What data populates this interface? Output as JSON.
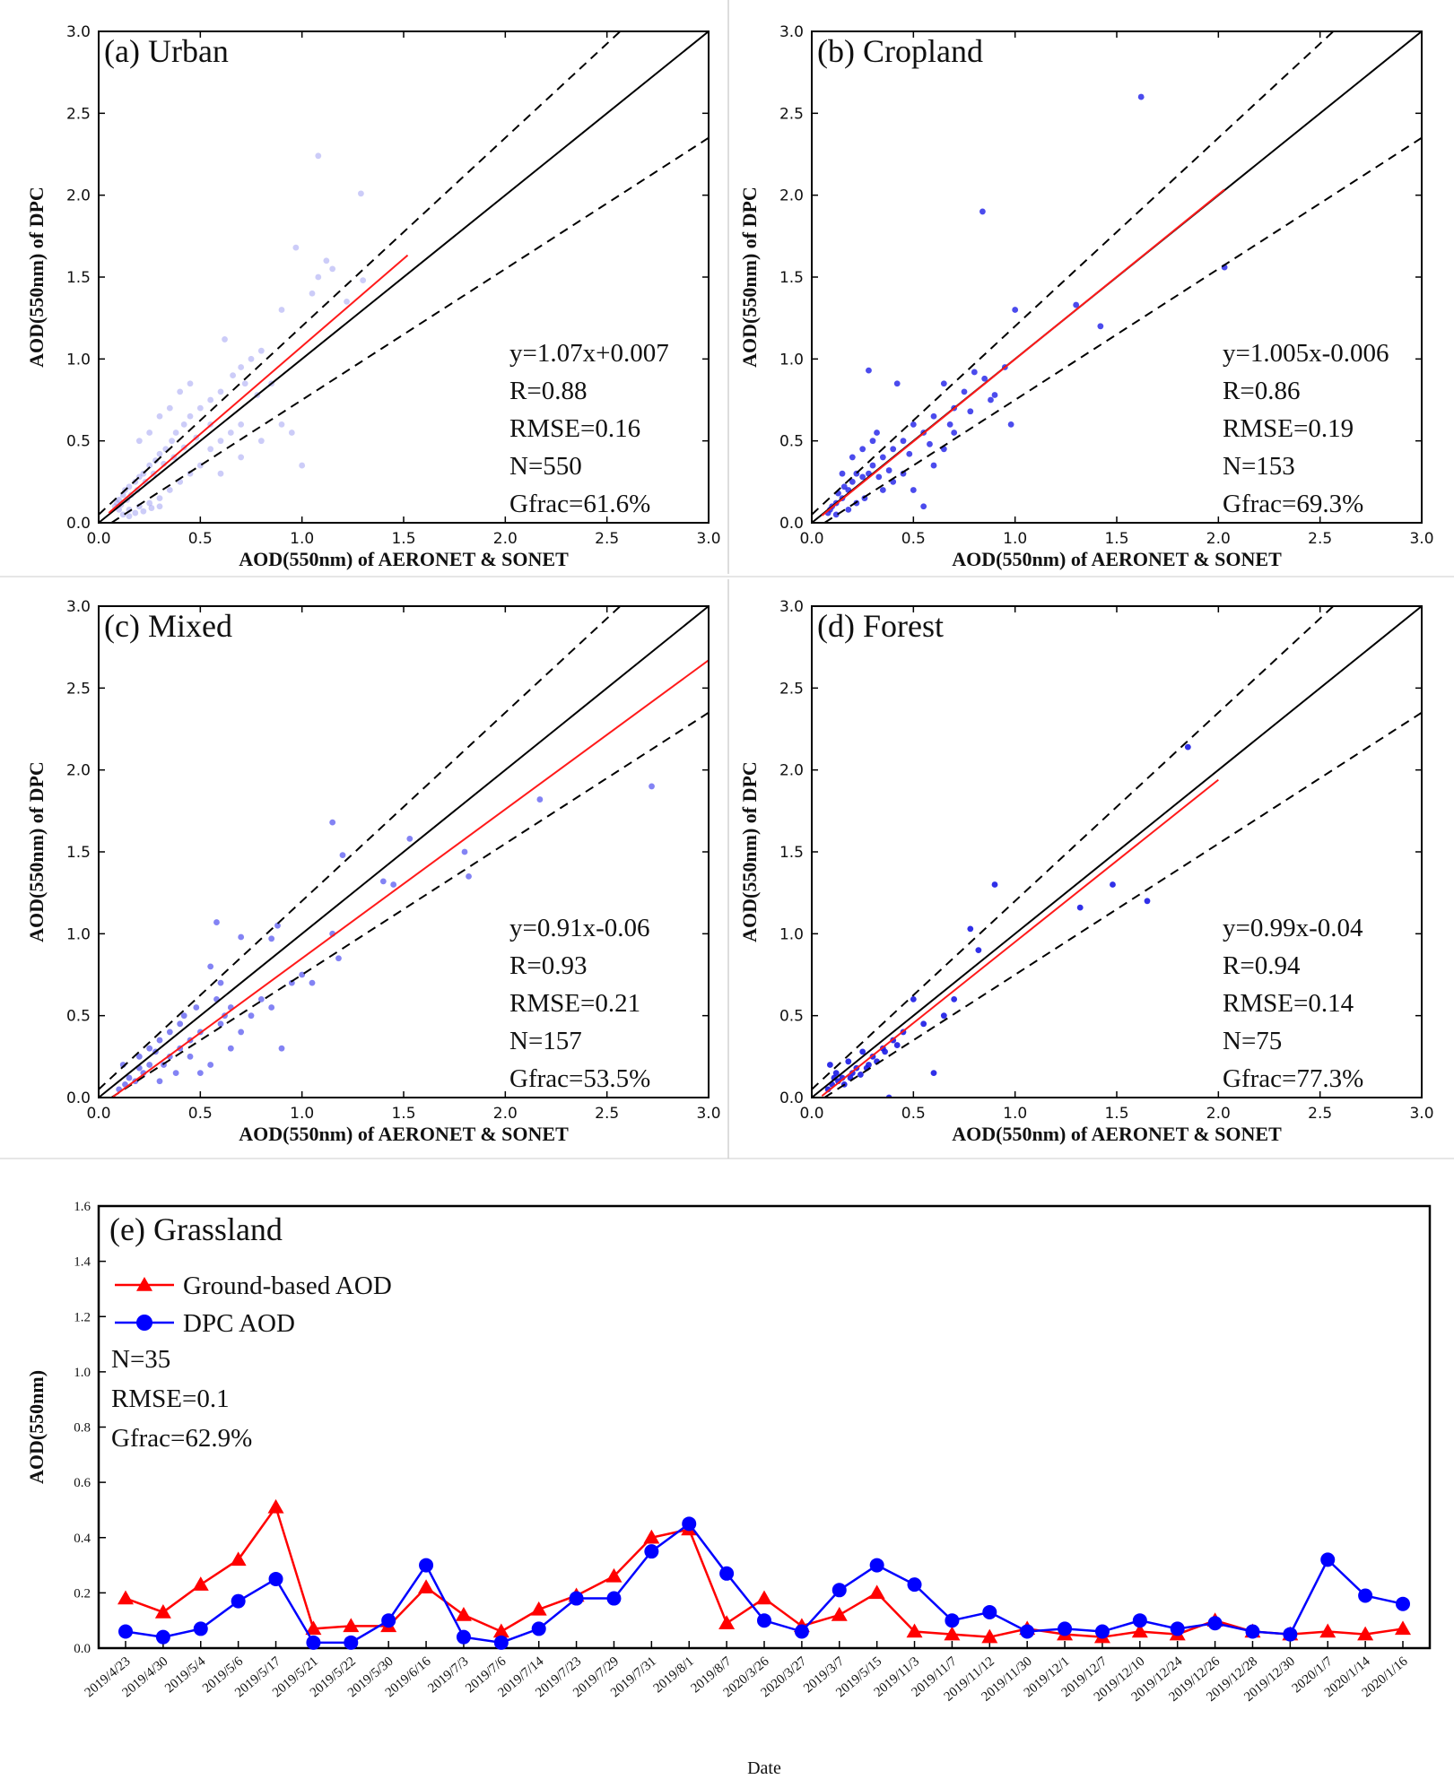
{
  "chart_data": [
    {
      "id": "a",
      "type": "scatter",
      "title": "(a) Urban",
      "xlabel": "AOD(550nm) of AERONET & SONET",
      "ylabel": "AOD(550nm) of DPC",
      "xlim": [
        0,
        3.0
      ],
      "ylim": [
        0,
        3.0
      ],
      "ticks": [
        "0.0",
        "0.5",
        "1.0",
        "1.5",
        "2.0",
        "2.5",
        "3.0"
      ],
      "fit": {
        "slope": 1.07,
        "intercept": 0.007,
        "x_range": [
          0.05,
          1.52
        ]
      },
      "stats": [
        "y=1.07x+0.007",
        "R=0.88",
        "RMSE=0.16",
        "N=550",
        "Gfrac=61.6%"
      ],
      "point_color": "#8e8ef0",
      "point_opacity": 0.45,
      "points": [
        [
          1.08,
          2.24
        ],
        [
          1.29,
          2.01
        ],
        [
          0.97,
          1.68
        ],
        [
          1.12,
          1.6
        ],
        [
          1.15,
          1.55
        ],
        [
          1.08,
          1.5
        ],
        [
          1.3,
          1.48
        ],
        [
          1.22,
          1.35
        ],
        [
          1.05,
          1.4
        ],
        [
          0.9,
          1.3
        ],
        [
          0.62,
          1.12
        ],
        [
          0.8,
          1.05
        ],
        [
          0.75,
          1.0
        ],
        [
          0.7,
          0.95
        ],
        [
          1.0,
          0.35
        ],
        [
          0.95,
          0.55
        ],
        [
          0.85,
          0.85
        ],
        [
          0.78,
          0.78
        ],
        [
          0.72,
          0.85
        ],
        [
          0.66,
          0.9
        ],
        [
          0.6,
          0.8
        ],
        [
          0.55,
          0.75
        ],
        [
          0.5,
          0.7
        ],
        [
          0.45,
          0.65
        ],
        [
          0.42,
          0.6
        ],
        [
          0.38,
          0.55
        ],
        [
          0.36,
          0.5
        ],
        [
          0.33,
          0.45
        ],
        [
          0.3,
          0.42
        ],
        [
          0.28,
          0.38
        ],
        [
          0.25,
          0.35
        ],
        [
          0.22,
          0.3
        ],
        [
          0.2,
          0.28
        ],
        [
          0.18,
          0.25
        ],
        [
          0.15,
          0.22
        ],
        [
          0.13,
          0.2
        ],
        [
          0.12,
          0.17
        ],
        [
          0.1,
          0.14
        ],
        [
          0.09,
          0.12
        ],
        [
          0.08,
          0.1
        ],
        [
          0.55,
          0.45
        ],
        [
          0.6,
          0.5
        ],
        [
          0.65,
          0.55
        ],
        [
          0.7,
          0.6
        ],
        [
          0.5,
          0.35
        ],
        [
          0.45,
          0.3
        ],
        [
          0.4,
          0.25
        ],
        [
          0.35,
          0.2
        ],
        [
          0.3,
          0.15
        ],
        [
          0.25,
          0.12
        ],
        [
          0.2,
          0.1
        ],
        [
          0.15,
          0.08
        ],
        [
          0.4,
          0.8
        ],
        [
          0.45,
          0.85
        ],
        [
          0.35,
          0.7
        ],
        [
          0.3,
          0.65
        ],
        [
          0.25,
          0.55
        ],
        [
          0.2,
          0.5
        ],
        [
          0.6,
          0.3
        ],
        [
          0.7,
          0.4
        ],
        [
          0.8,
          0.5
        ],
        [
          0.9,
          0.6
        ],
        [
          0.55,
          0.6
        ],
        [
          0.48,
          0.52
        ],
        [
          0.42,
          0.46
        ],
        [
          0.37,
          0.4
        ],
        [
          0.32,
          0.36
        ],
        [
          0.27,
          0.3
        ],
        [
          0.23,
          0.25
        ],
        [
          0.19,
          0.2
        ],
        [
          0.16,
          0.17
        ],
        [
          0.14,
          0.14
        ],
        [
          0.11,
          0.11
        ],
        [
          0.1,
          0.08
        ],
        [
          0.12,
          0.05
        ],
        [
          0.15,
          0.04
        ],
        [
          0.18,
          0.06
        ],
        [
          0.22,
          0.07
        ],
        [
          0.26,
          0.09
        ],
        [
          0.3,
          0.1
        ]
      ]
    },
    {
      "id": "b",
      "type": "scatter",
      "title": "(b) Cropland",
      "xlabel": "AOD(550nm) of AERONET & SONET",
      "ylabel": "AOD(550nm) of DPC",
      "xlim": [
        0,
        3.0
      ],
      "ylim": [
        0,
        3.0
      ],
      "ticks": [
        "0.0",
        "0.5",
        "1.0",
        "1.5",
        "2.0",
        "2.5",
        "3.0"
      ],
      "fit": {
        "slope": 1.005,
        "intercept": -0.006,
        "x_range": [
          0.05,
          2.03
        ]
      },
      "stats": [
        "y=1.005x-0.006",
        "R=0.86",
        "RMSE=0.19",
        "N=153",
        "Gfrac=69.3%"
      ],
      "point_color": "#2b2bea",
      "point_opacity": 0.85,
      "points": [
        [
          1.62,
          2.6
        ],
        [
          0.84,
          1.9
        ],
        [
          2.03,
          1.56
        ],
        [
          1.0,
          1.3
        ],
        [
          1.3,
          1.33
        ],
        [
          1.42,
          1.2
        ],
        [
          0.95,
          0.95
        ],
        [
          0.9,
          0.78
        ],
        [
          0.98,
          0.6
        ],
        [
          0.8,
          0.92
        ],
        [
          0.85,
          0.88
        ],
        [
          0.75,
          0.8
        ],
        [
          0.7,
          0.7
        ],
        [
          0.65,
          0.85
        ],
        [
          0.6,
          0.65
        ],
        [
          0.55,
          0.55
        ],
        [
          0.5,
          0.6
        ],
        [
          0.45,
          0.5
        ],
        [
          0.42,
          0.85
        ],
        [
          0.4,
          0.45
        ],
        [
          0.35,
          0.4
        ],
        [
          0.32,
          0.55
        ],
        [
          0.3,
          0.35
        ],
        [
          0.28,
          0.93
        ],
        [
          0.28,
          0.3
        ],
        [
          0.25,
          0.28
        ],
        [
          0.22,
          0.3
        ],
        [
          0.2,
          0.25
        ],
        [
          0.18,
          0.2
        ],
        [
          0.16,
          0.22
        ],
        [
          0.15,
          0.15
        ],
        [
          0.13,
          0.18
        ],
        [
          0.12,
          0.12
        ],
        [
          0.1,
          0.1
        ],
        [
          0.09,
          0.08
        ],
        [
          0.08,
          0.06
        ],
        [
          0.35,
          0.2
        ],
        [
          0.4,
          0.25
        ],
        [
          0.45,
          0.3
        ],
        [
          0.5,
          0.2
        ],
        [
          0.55,
          0.1
        ],
        [
          0.6,
          0.35
        ],
        [
          0.65,
          0.45
        ],
        [
          0.7,
          0.55
        ],
        [
          0.25,
          0.45
        ],
        [
          0.3,
          0.5
        ],
        [
          0.2,
          0.4
        ],
        [
          0.15,
          0.3
        ],
        [
          0.12,
          0.05
        ],
        [
          0.18,
          0.08
        ],
        [
          0.22,
          0.12
        ],
        [
          0.26,
          0.15
        ],
        [
          0.33,
          0.28
        ],
        [
          0.38,
          0.32
        ],
        [
          0.48,
          0.42
        ],
        [
          0.58,
          0.48
        ],
        [
          0.68,
          0.6
        ],
        [
          0.78,
          0.68
        ],
        [
          0.88,
          0.75
        ]
      ]
    },
    {
      "id": "c",
      "type": "scatter",
      "title": "(c) Mixed",
      "xlabel": "AOD(550nm) of AERONET & SONET",
      "ylabel": "AOD(550nm) of DPC",
      "xlim": [
        0,
        3.0
      ],
      "ylim": [
        0,
        3.0
      ],
      "ticks": [
        "0.0",
        "0.5",
        "1.0",
        "1.5",
        "2.0",
        "2.5",
        "3.0"
      ],
      "fit": {
        "slope": 0.91,
        "intercept": -0.06,
        "x_range": [
          0.07,
          3.0
        ]
      },
      "stats": [
        "y=0.91x-0.06",
        "R=0.93",
        "RMSE=0.21",
        "N=157",
        "Gfrac=53.5%"
      ],
      "point_color": "#5a5af0",
      "point_opacity": 0.75,
      "points": [
        [
          2.72,
          1.9
        ],
        [
          2.17,
          1.82
        ],
        [
          1.15,
          1.68
        ],
        [
          1.53,
          1.58
        ],
        [
          1.2,
          1.48
        ],
        [
          1.8,
          1.5
        ],
        [
          1.4,
          1.32
        ],
        [
          1.45,
          1.3
        ],
        [
          1.82,
          1.35
        ],
        [
          0.58,
          1.07
        ],
        [
          0.88,
          1.05
        ],
        [
          1.15,
          1.0
        ],
        [
          1.18,
          0.85
        ],
        [
          1.0,
          0.75
        ],
        [
          0.85,
          0.97
        ],
        [
          0.7,
          0.98
        ],
        [
          0.55,
          0.8
        ],
        [
          0.6,
          0.7
        ],
        [
          0.9,
          0.3
        ],
        [
          0.8,
          0.6
        ],
        [
          0.75,
          0.5
        ],
        [
          0.65,
          0.55
        ],
        [
          0.6,
          0.45
        ],
        [
          0.5,
          0.4
        ],
        [
          0.45,
          0.35
        ],
        [
          0.42,
          0.5
        ],
        [
          0.4,
          0.3
        ],
        [
          0.35,
          0.25
        ],
        [
          0.32,
          0.2
        ],
        [
          0.3,
          0.35
        ],
        [
          0.28,
          0.28
        ],
        [
          0.25,
          0.2
        ],
        [
          0.22,
          0.15
        ],
        [
          0.2,
          0.25
        ],
        [
          0.18,
          0.1
        ],
        [
          0.15,
          0.12
        ],
        [
          0.13,
          0.08
        ],
        [
          0.12,
          0.2
        ],
        [
          0.1,
          0.05
        ],
        [
          0.55,
          0.2
        ],
        [
          0.5,
          0.15
        ],
        [
          0.45,
          0.25
        ],
        [
          0.65,
          0.3
        ],
        [
          0.7,
          0.4
        ],
        [
          0.85,
          0.55
        ],
        [
          0.95,
          0.7
        ],
        [
          1.05,
          0.7
        ],
        [
          0.4,
          0.45
        ],
        [
          0.35,
          0.4
        ],
        [
          0.3,
          0.1
        ],
        [
          0.25,
          0.3
        ],
        [
          0.2,
          0.18
        ],
        [
          0.58,
          0.6
        ],
        [
          0.62,
          0.5
        ],
        [
          0.48,
          0.55
        ],
        [
          0.38,
          0.15
        ]
      ]
    },
    {
      "id": "d",
      "type": "scatter",
      "title": "(d) Forest",
      "xlabel": "AOD(550nm) of AERONET & SONET",
      "ylabel": "AOD(550nm) of DPC",
      "xlim": [
        0,
        3.0
      ],
      "ylim": [
        0,
        3.0
      ],
      "ticks": [
        "0.0",
        "0.5",
        "1.0",
        "1.5",
        "2.0",
        "2.5",
        "3.0"
      ],
      "fit": {
        "slope": 0.99,
        "intercept": -0.04,
        "x_range": [
          0.05,
          2.0
        ]
      },
      "stats": [
        "y=0.99x-0.04",
        "R=0.94",
        "RMSE=0.14",
        "N=75",
        "Gfrac=77.3%"
      ],
      "point_color": "#1a1ae6",
      "point_opacity": 0.9,
      "points": [
        [
          1.85,
          2.14
        ],
        [
          0.9,
          1.3
        ],
        [
          0.78,
          1.03
        ],
        [
          0.82,
          0.9
        ],
        [
          1.32,
          1.16
        ],
        [
          1.48,
          1.3
        ],
        [
          1.65,
          1.2
        ],
        [
          0.7,
          0.6
        ],
        [
          0.65,
          0.5
        ],
        [
          0.6,
          0.15
        ],
        [
          0.5,
          0.6
        ],
        [
          0.45,
          0.4
        ],
        [
          0.4,
          0.35
        ],
        [
          0.38,
          0.0
        ],
        [
          0.35,
          0.3
        ],
        [
          0.3,
          0.25
        ],
        [
          0.28,
          0.2
        ],
        [
          0.25,
          0.28
        ],
        [
          0.22,
          0.18
        ],
        [
          0.2,
          0.15
        ],
        [
          0.18,
          0.22
        ],
        [
          0.15,
          0.12
        ],
        [
          0.13,
          0.1
        ],
        [
          0.12,
          0.15
        ],
        [
          0.1,
          0.08
        ],
        [
          0.08,
          0.05
        ],
        [
          0.09,
          0.2
        ],
        [
          0.11,
          0.12
        ],
        [
          0.16,
          0.08
        ],
        [
          0.19,
          0.12
        ],
        [
          0.24,
          0.14
        ],
        [
          0.27,
          0.18
        ],
        [
          0.32,
          0.22
        ],
        [
          0.36,
          0.28
        ],
        [
          0.42,
          0.32
        ],
        [
          0.55,
          0.45
        ]
      ]
    },
    {
      "id": "e",
      "type": "line",
      "title": "(e) Grassland",
      "xlabel": "Date",
      "ylabel": "AOD(550nm)",
      "ylim": [
        0,
        1.6
      ],
      "yticks": [
        "0.0",
        "0.2",
        "0.4",
        "0.6",
        "0.8",
        "1.0",
        "1.2",
        "1.4",
        "1.6"
      ],
      "categories": [
        "2019/4/23",
        "2019/4/30",
        "2019/5/4",
        "2019/5/6",
        "2019/5/17",
        "2019/5/21",
        "2019/5/22",
        "2019/5/30",
        "2019/6/16",
        "2019/7/3",
        "2019/7/6",
        "2019/7/14",
        "2019/7/23",
        "2019/7/29",
        "2019/7/31",
        "2019/8/1",
        "2019/8/7",
        "2020/3/26",
        "2020/3/27",
        "2019/3/7",
        "2019/5/15",
        "2019/11/3",
        "2019/11/7",
        "2019/11/12",
        "2019/11/30",
        "2019/12/1",
        "2019/12/7",
        "2019/12/10",
        "2019/12/24",
        "2019/12/26",
        "2019/12/28",
        "2019/12/30",
        "2020/1/7",
        "2020/1/14",
        "2020/1/16"
      ],
      "series": [
        {
          "name": "Ground-based AOD",
          "color": "#ff0000",
          "marker": "triangle",
          "values": [
            0.18,
            0.13,
            0.23,
            0.32,
            0.51,
            0.07,
            0.08,
            0.08,
            0.22,
            0.12,
            0.06,
            0.14,
            0.19,
            0.26,
            0.4,
            0.43,
            0.09,
            0.18,
            0.08,
            0.12,
            0.2,
            0.06,
            0.05,
            0.04,
            0.07,
            0.05,
            0.04,
            0.06,
            0.05,
            0.1,
            0.06,
            0.05,
            0.06,
            0.05,
            0.07
          ]
        },
        {
          "name": "DPC AOD",
          "color": "#0000ff",
          "marker": "circle",
          "values": [
            0.06,
            0.04,
            0.07,
            0.17,
            0.25,
            0.02,
            0.02,
            0.1,
            0.3,
            0.04,
            0.02,
            0.07,
            0.18,
            0.18,
            0.35,
            0.45,
            0.27,
            0.1,
            0.06,
            0.21,
            0.3,
            0.23,
            0.1,
            0.13,
            0.06,
            0.07,
            0.06,
            0.1,
            0.07,
            0.09,
            0.06,
            0.05,
            0.32,
            0.19,
            0.16
          ]
        }
      ],
      "stats": [
        "N=35",
        "RMSE=0.1",
        "Gfrac=62.9%"
      ]
    }
  ]
}
